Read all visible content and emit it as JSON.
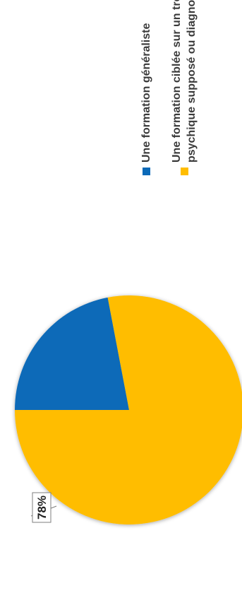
{
  "chart_data": {
    "type": "pie",
    "title": "",
    "slices": [
      {
        "name": "Une formation généraliste",
        "value": 22,
        "label": "22%",
        "color": "#0c6ab8",
        "legend_lines": [
          "Une formation généraliste"
        ]
      },
      {
        "name": "Une formation ciblée sur un trouble psychique supposé ou diagnostiqué",
        "value": 78,
        "label": "78%",
        "color": "#ffbd00",
        "legend_lines": [
          "Une formation ciblée sur un trouble",
          "psychique supposé ou  diagnostiqué"
        ]
      }
    ],
    "legend_position": "right",
    "orientation": "rotated-90-ccw"
  }
}
